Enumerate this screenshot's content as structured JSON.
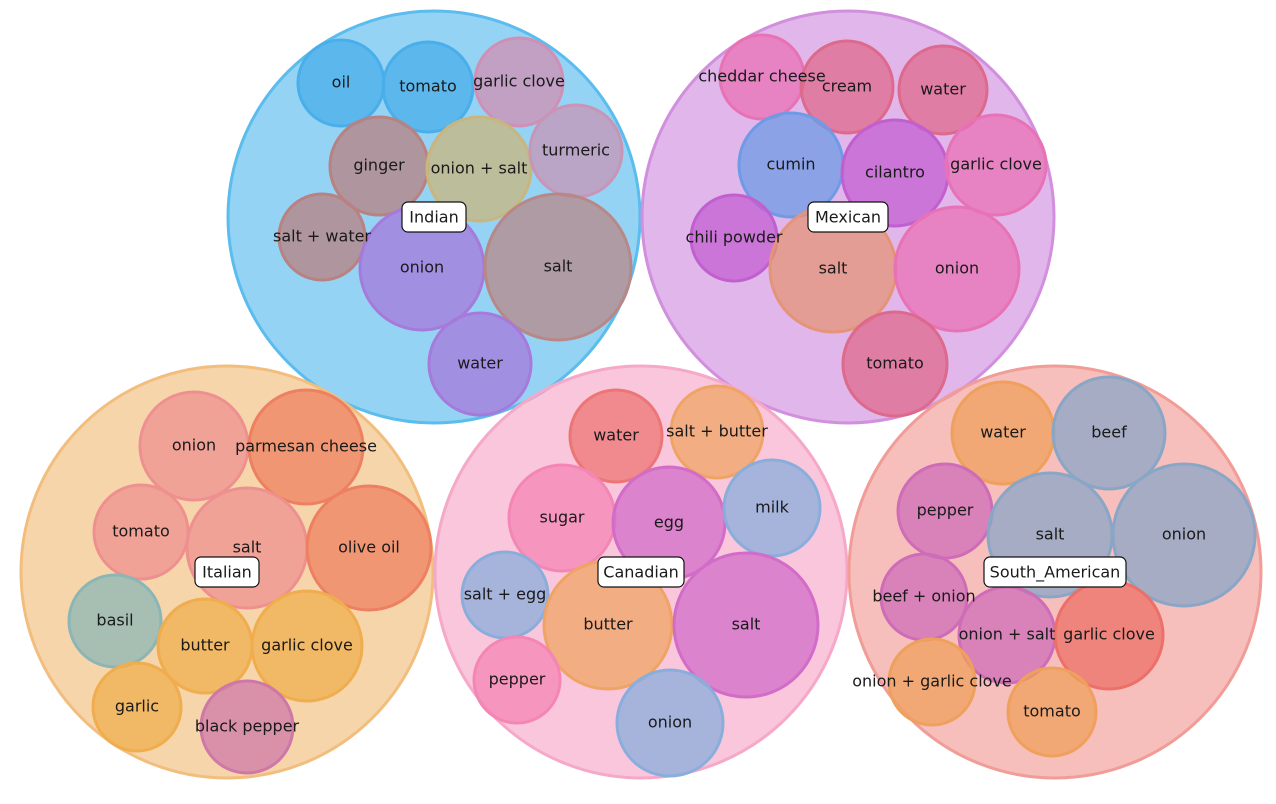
{
  "groups": [
    {
      "name": "Indian",
      "color": "#5bbcee",
      "items": [
        {
          "label": "oil",
          "color": "#4aaeea"
        },
        {
          "label": "tomato",
          "color": "#4aaeea"
        },
        {
          "label": "garlic clove",
          "color": "#d08fb4"
        },
        {
          "label": "ginger",
          "color": "#b88282"
        },
        {
          "label": "onion + salt",
          "color": "#c9b57e"
        },
        {
          "label": "turmeric",
          "color": "#c795b8"
        },
        {
          "label": "salt + water",
          "color": "#b88282"
        },
        {
          "label": "onion",
          "color": "#a57adb"
        },
        {
          "label": "salt",
          "color": "#b88888"
        },
        {
          "label": "water",
          "color": "#a57adb"
        }
      ]
    },
    {
      "name": "Mexican",
      "color": "#d18fde",
      "items": [
        {
          "label": "cheddar cheese",
          "color": "#e872b6"
        },
        {
          "label": "cream",
          "color": "#dd6a8c"
        },
        {
          "label": "water",
          "color": "#dd6a8c"
        },
        {
          "label": "cumin",
          "color": "#6f9be6"
        },
        {
          "label": "cilantro",
          "color": "#c25fd0"
        },
        {
          "label": "garlic clove",
          "color": "#e872b6"
        },
        {
          "label": "chili powder",
          "color": "#c25fd0"
        },
        {
          "label": "salt",
          "color": "#e49478"
        },
        {
          "label": "onion",
          "color": "#e872b6"
        },
        {
          "label": "tomato",
          "color": "#dd6a8c"
        }
      ]
    },
    {
      "name": "Italian",
      "color": "#f2be7e",
      "items": [
        {
          "label": "onion",
          "color": "#ef9090"
        },
        {
          "label": "parmesan cheese",
          "color": "#ed8060"
        },
        {
          "label": "tomato",
          "color": "#ef9090"
        },
        {
          "label": "salt",
          "color": "#ef9090"
        },
        {
          "label": "olive oil",
          "color": "#ed8060"
        },
        {
          "label": "basil",
          "color": "#8cb6b6"
        },
        {
          "label": "butter",
          "color": "#efad4e"
        },
        {
          "label": "garlic clove",
          "color": "#efad4e"
        },
        {
          "label": "garlic",
          "color": "#efad4e"
        },
        {
          "label": "black pepper",
          "color": "#cf78a8"
        }
      ]
    },
    {
      "name": "Canadian",
      "color": "#f6a8c8",
      "items": [
        {
          "label": "water",
          "color": "#ec7676"
        },
        {
          "label": "salt + butter",
          "color": "#efa466"
        },
        {
          "label": "sugar",
          "color": "#f486b5"
        },
        {
          "label": "egg",
          "color": "#d26cc8"
        },
        {
          "label": "milk",
          "color": "#8aaedc"
        },
        {
          "label": "salt + egg",
          "color": "#8aaedc"
        },
        {
          "label": "butter",
          "color": "#efa466"
        },
        {
          "label": "salt",
          "color": "#d26cc8"
        },
        {
          "label": "pepper",
          "color": "#f486b5"
        },
        {
          "label": "onion",
          "color": "#8aaedc"
        }
      ]
    },
    {
      "name": "South_American",
      "color": "#f19c96",
      "items": [
        {
          "label": "water",
          "color": "#efa05c"
        },
        {
          "label": "beef",
          "color": "#8aa6c6"
        },
        {
          "label": "pepper",
          "color": "#cf6cb8"
        },
        {
          "label": "salt",
          "color": "#8aa6c6"
        },
        {
          "label": "onion",
          "color": "#8aa6c6"
        },
        {
          "label": "beef + onion",
          "color": "#cf6cb8"
        },
        {
          "label": "onion + salt",
          "color": "#cf6cb8"
        },
        {
          "label": "garlic clove",
          "color": "#ec7068"
        },
        {
          "label": "onion + garlic clove",
          "color": "#efa05c"
        },
        {
          "label": "tomato",
          "color": "#efa05c"
        }
      ]
    }
  ]
}
